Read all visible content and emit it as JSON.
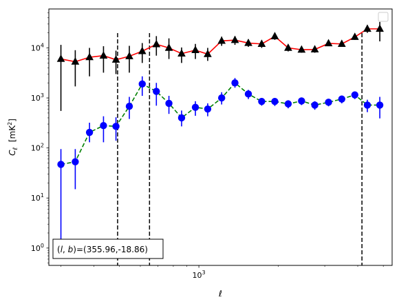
{
  "chart_data": {
    "type": "scatter",
    "xlabel": "ℓ",
    "ylabel_main": "C",
    "ylabel_sub": "ℓ",
    "ylabel_unit": "[mK",
    "ylabel_unit_sup": "2",
    "ylabel_unit_close": "]",
    "xscale": "log",
    "yscale": "log",
    "xlim": [
      270,
      5400
    ],
    "ylim": [
      0.45,
      60000
    ],
    "xticks": [
      {
        "value": 1000,
        "base": "10",
        "exp": "3"
      }
    ],
    "yticks": [
      {
        "value": 1,
        "base": "10",
        "exp": "0"
      },
      {
        "value": 10,
        "base": "10",
        "exp": "1"
      },
      {
        "value": 100,
        "base": "10",
        "exp": "2"
      },
      {
        "value": 1000,
        "base": "10",
        "exp": "3"
      },
      {
        "value": 10000,
        "base": "10",
        "exp": "4"
      }
    ],
    "vlines": [
      492,
      650,
      4150
    ],
    "annotation": "(l, b)=(355.96,-18.86)",
    "annotation_parts": {
      "open": "(",
      "l": "l",
      "comma": ", ",
      "b": "b",
      "close": ")",
      "value": "=(355.96,-18.86)"
    },
    "legend": {
      "placement": "upper right",
      "entries": []
    },
    "series": [
      {
        "line_color": "#ff0000",
        "line_style": "solid",
        "marker": "triangle",
        "marker_color": "#000000",
        "errorbar_color": "#000000",
        "x": [
          300,
          340,
          385,
          435,
          485,
          545,
          610,
          690,
          770,
          860,
          970,
          1080,
          1220,
          1370,
          1540,
          1730,
          1940,
          2180,
          2450,
          2750,
          3100,
          3480,
          3900,
          4350,
          4850
        ],
        "y": [
          6000,
          5300,
          6500,
          7000,
          5800,
          6800,
          8600,
          11800,
          10000,
          7700,
          9000,
          7500,
          13800,
          14300,
          12500,
          12000,
          17000,
          10000,
          9200,
          9300,
          12300,
          12000,
          16500,
          24000,
          24000
        ],
        "yerr_low": [
          550,
          1700,
          2700,
          3200,
          3000,
          3200,
          5000,
          7000,
          6000,
          5000,
          6000,
          5500,
          11000,
          11500,
          10500,
          10000,
          14500,
          8500,
          8000,
          8000,
          11000,
          10500,
          14500,
          20000,
          13500
        ],
        "yerr_high": [
          11500,
          9000,
          10000,
          10800,
          8800,
          11000,
          12500,
          17200,
          15500,
          10200,
          12000,
          10000,
          16800,
          17200,
          14800,
          14000,
          20000,
          11500,
          10500,
          10500,
          13800,
          13600,
          19000,
          28500,
          33000
        ]
      },
      {
        "line_color": "#008000",
        "line_style": "dashed",
        "marker": "circle",
        "marker_color": "#0000ff",
        "errorbar_color": "#0000ff",
        "x": [
          300,
          340,
          385,
          435,
          485,
          545,
          610,
          690,
          770,
          860,
          970,
          1080,
          1220,
          1370,
          1540,
          1730,
          1940,
          2180,
          2450,
          2750,
          3100,
          3480,
          3900,
          4350,
          4850
        ],
        "y": [
          47,
          53,
          205,
          280,
          270,
          680,
          1900,
          1350,
          780,
          400,
          650,
          600,
          1000,
          2000,
          1200,
          850,
          850,
          760,
          870,
          720,
          820,
          950,
          1150,
          720,
          720
        ],
        "yerr_low": [
          1.1,
          15,
          130,
          130,
          140,
          380,
          1100,
          700,
          480,
          270,
          440,
          430,
          740,
          1600,
          950,
          700,
          690,
          620,
          720,
          580,
          680,
          780,
          950,
          520,
          390
        ],
        "yerr_high": [
          95,
          95,
          320,
          430,
          410,
          1050,
          2700,
          2000,
          1100,
          560,
          860,
          780,
          1300,
          2500,
          1450,
          1000,
          1000,
          900,
          1020,
          860,
          960,
          1120,
          1350,
          920,
          1050
        ]
      }
    ]
  }
}
